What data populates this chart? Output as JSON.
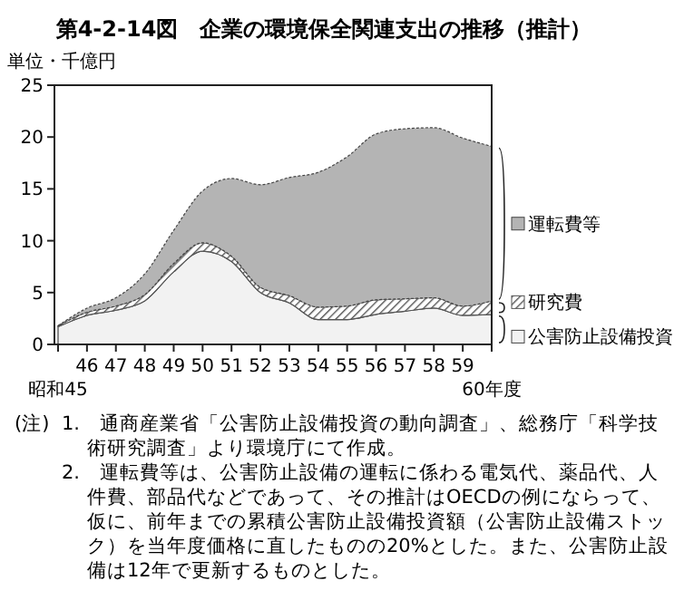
{
  "chart_data": {
    "type": "area",
    "stacked": true,
    "title": "第4-2-14図　企業の環境保全関連支出の推移（推計）",
    "ylabel": "単位・千億円",
    "categories": [
      "昭和45",
      "46",
      "47",
      "48",
      "49",
      "50",
      "51",
      "52",
      "53",
      "54",
      "55",
      "56",
      "57",
      "58",
      "59",
      "60年度"
    ],
    "series": [
      {
        "name": "公害防止設備投資",
        "color": "#f2f2f2",
        "values": [
          1.7,
          2.8,
          3.3,
          4.2,
          7.0,
          9.0,
          8.0,
          5.0,
          4.0,
          2.4,
          2.4,
          2.9,
          3.2,
          3.5,
          2.8,
          2.9
        ]
      },
      {
        "name": "研究費",
        "color": "#555555",
        "values": [
          0.1,
          0.3,
          0.4,
          0.6,
          0.8,
          0.8,
          0.5,
          0.5,
          0.7,
          1.2,
          1.3,
          1.4,
          1.2,
          1.0,
          0.9,
          1.3
        ]
      },
      {
        "name": "運転費等",
        "color": "#b4b4b4",
        "values": [
          0.0,
          0.4,
          0.8,
          2.0,
          3.2,
          5.0,
          7.5,
          9.9,
          11.4,
          13.0,
          14.4,
          16.0,
          16.4,
          16.4,
          16.2,
          14.9
        ]
      }
    ],
    "ylim": [
      0,
      25
    ],
    "yticks": [
      0,
      5,
      10,
      15,
      20,
      25
    ],
    "grid": false,
    "legend": "right",
    "annotations": [
      "(注)",
      "1.　通商産業省「公害防止設備投資の動向調査」、総務庁「科学技術研究調査」より環境庁にて作成。",
      "2.　運転費等は、公害防止設備の運転に係わる電気代、薬品代、人件費、部品代などであって、その推計はOECDの例にならって、仮に、前年までの累積公害防止設備投資額（公害防止設備ストック）を当年度価格に直したものの20%とした。また、公害防止設備は12年で更新するものとした。"
    ]
  }
}
